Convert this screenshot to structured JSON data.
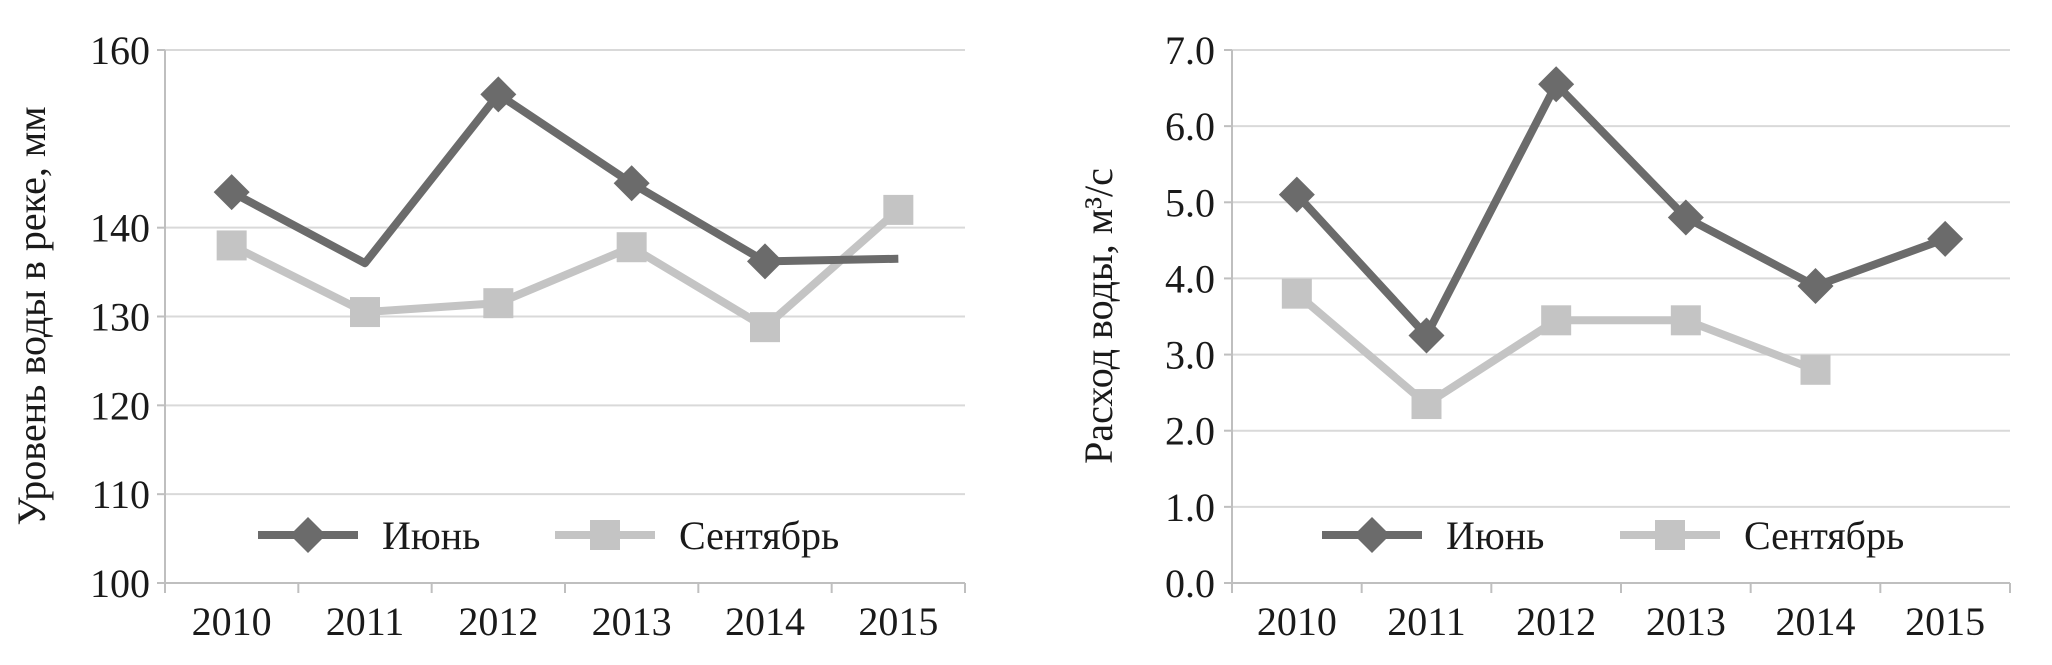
{
  "chart_data": [
    {
      "type": "line",
      "x": [
        "2010",
        "2011",
        "2012",
        "2013",
        "2014",
        "2015"
      ],
      "ylabel": "Уровень воды в реке, мм",
      "ylim": [
        100,
        160
      ],
      "yticks": [
        "100",
        "110",
        "120",
        "130",
        "140",
        "160"
      ],
      "grid": true,
      "legend": "bottom",
      "series": [
        {
          "name": "Июнь",
          "values": [
            144,
            136,
            155,
            145,
            136.2,
            136.5
          ],
          "markers": [
            true,
            false,
            true,
            true,
            true,
            false
          ],
          "color": "#6b6b6b",
          "marker": "diamond"
        },
        {
          "name": "Сентябрь",
          "values": [
            138,
            130.5,
            131.5,
            137.8,
            128.8,
            142
          ],
          "markers": [
            true,
            true,
            true,
            true,
            true,
            true
          ],
          "color": "#c4c4c4",
          "marker": "square"
        }
      ]
    },
    {
      "type": "line",
      "x": [
        "2010",
        "2011",
        "2012",
        "2013",
        "2014",
        "2015"
      ],
      "ylabel": "Расход воды, м³/с",
      "ylim": [
        0,
        7
      ],
      "yticks": [
        "0.0",
        "1.0",
        "2.0",
        "3.0",
        "4.0",
        "5.0",
        "6.0",
        "7.0"
      ],
      "grid": true,
      "legend": "bottom",
      "series": [
        {
          "name": "Июнь",
          "values": [
            5.1,
            3.25,
            6.55,
            4.8,
            3.9,
            4.52
          ],
          "markers": [
            true,
            true,
            true,
            true,
            true,
            true
          ],
          "color": "#6b6b6b",
          "marker": "diamond"
        },
        {
          "name": "Сентябрь",
          "values": [
            3.8,
            2.35,
            3.45,
            3.45,
            2.8,
            null
          ],
          "markers": [
            true,
            true,
            true,
            true,
            true,
            false
          ],
          "color": "#c4c4c4",
          "marker": "square"
        }
      ]
    }
  ]
}
